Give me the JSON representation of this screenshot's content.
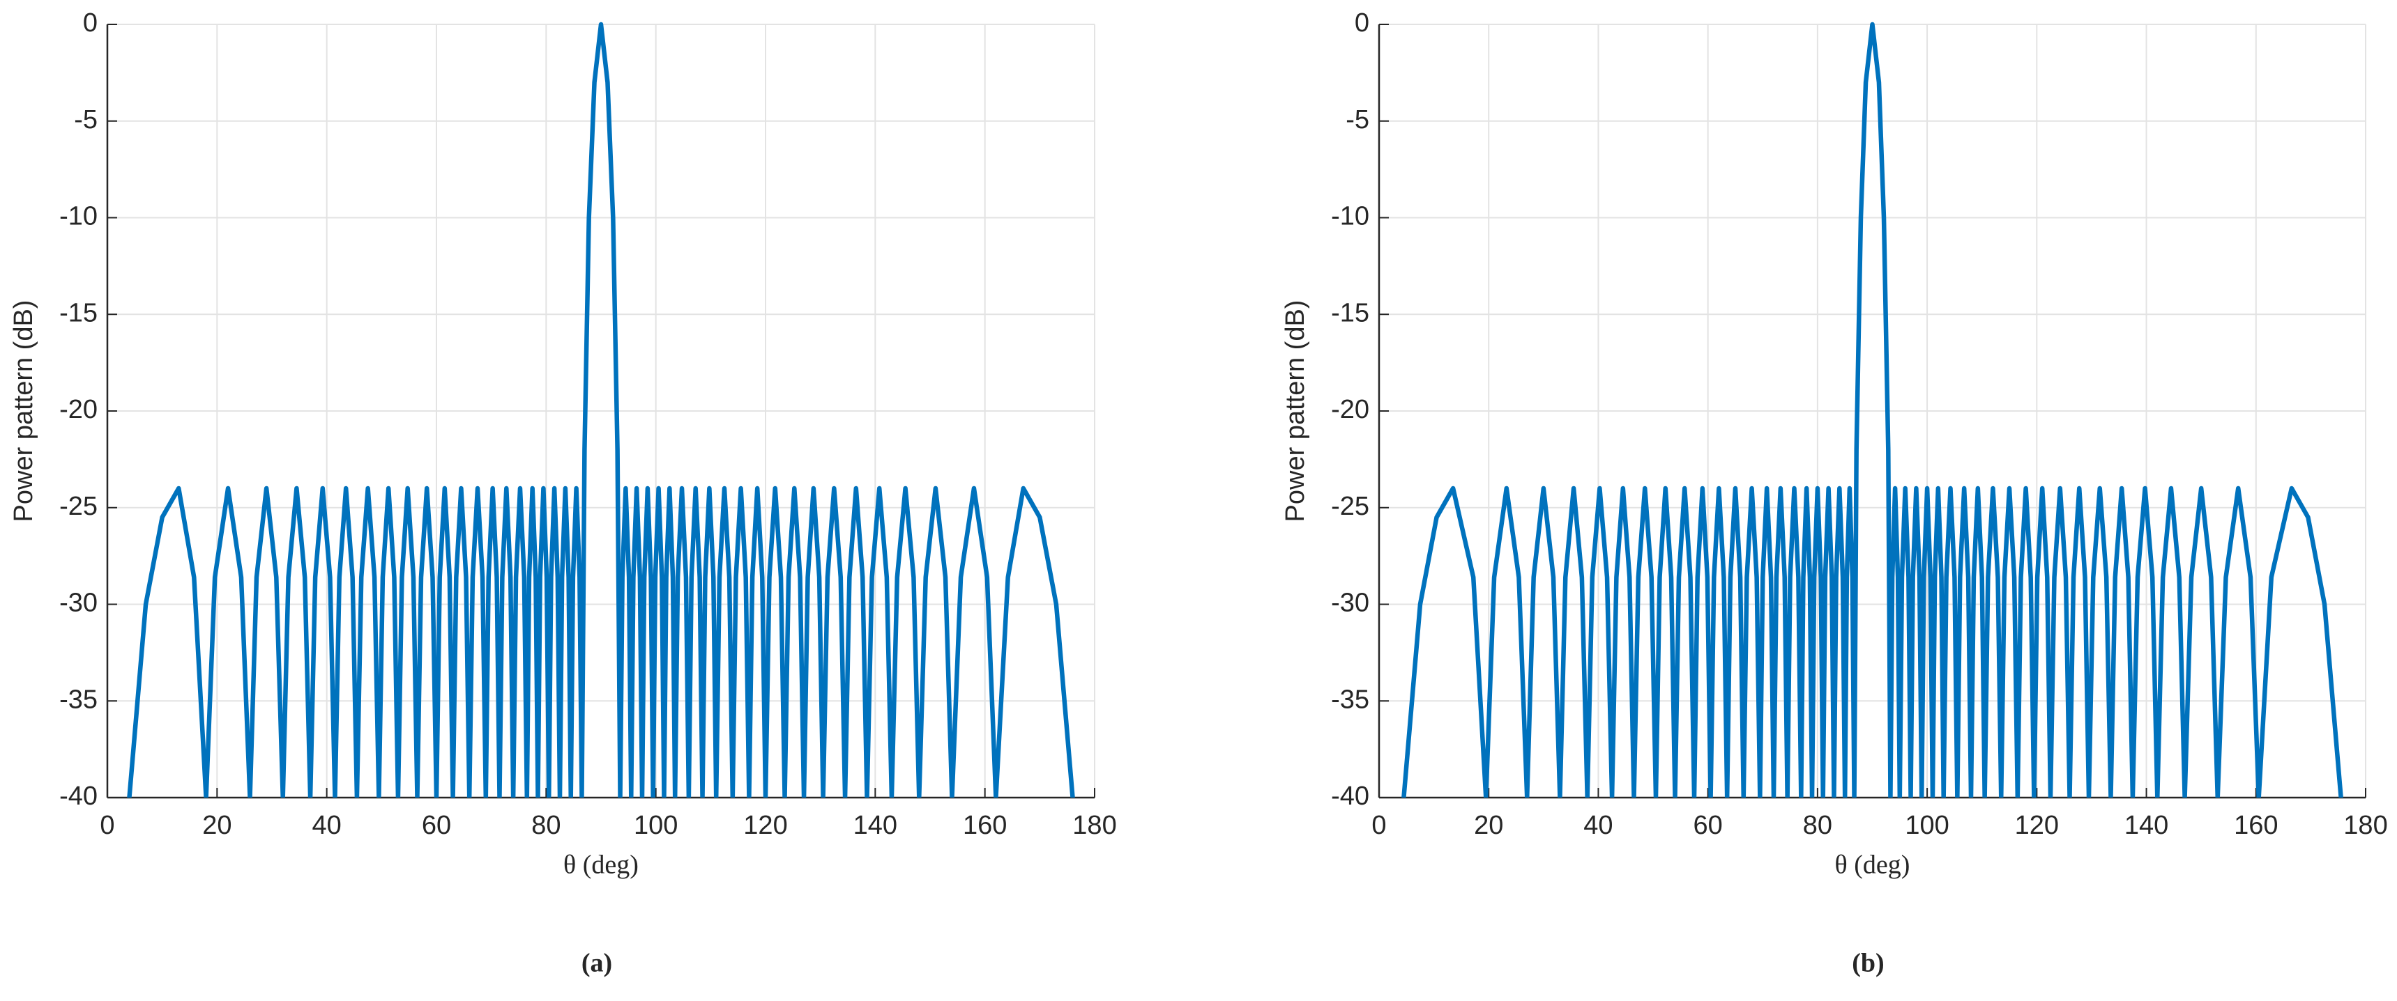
{
  "chart_data": [
    {
      "type": "line",
      "ylabel": "Power pattern (dB)",
      "xlabel": "θ (deg)",
      "caption": "(a)",
      "color": "#0072bd",
      "grid": true,
      "xlim": [
        0,
        180
      ],
      "xticks": [
        0,
        20,
        40,
        60,
        80,
        100,
        120,
        140,
        160,
        180
      ],
      "ylim": [
        -40,
        0
      ],
      "yticks": [
        0,
        -5,
        -10,
        -15,
        -20,
        -25,
        -30,
        -35,
        -40
      ],
      "x": [
        4,
        7,
        10,
        13,
        15.8,
        18,
        19.6,
        22,
        24.4,
        26,
        27.2,
        29,
        30.8,
        32,
        33,
        34.5,
        36,
        37,
        37.9,
        39.25,
        40.6,
        41.5,
        42.3,
        43.5,
        44.7,
        45.5,
        46.3,
        47.5,
        48.7,
        49.5,
        50.2,
        51.25,
        52.3,
        53,
        53.7,
        54.75,
        55.8,
        56.5,
        57.2,
        58.25,
        59.3,
        60,
        60.6,
        61.5,
        62.4,
        63,
        63.6,
        64.5,
        65.4,
        66,
        66.6,
        67.5,
        68.4,
        69,
        69.5,
        70.25,
        71,
        71.5,
        72,
        72.75,
        73.5,
        74,
        74.5,
        75.25,
        76,
        76.5,
        76.9,
        77.5,
        78.1,
        78.5,
        78.9,
        79.5,
        80.1,
        80.5,
        80.9,
        81.5,
        82.1,
        82.5,
        82.9,
        83.5,
        84.1,
        84.5,
        84.9,
        85.5,
        86.1,
        86.5,
        87,
        87.8,
        88.8,
        90,
        91.2,
        92.2,
        93,
        93.5,
        93.9,
        94.5,
        95.1,
        95.5,
        95.9,
        96.5,
        97.1,
        97.5,
        97.9,
        98.5,
        99.1,
        99.5,
        99.9,
        100.5,
        101.1,
        101.5,
        101.9,
        102.5,
        103.1,
        103.5,
        104,
        104.75,
        105.5,
        106,
        106.5,
        107.25,
        108,
        108.5,
        109,
        109.75,
        110.5,
        111,
        111.6,
        112.5,
        113.4,
        114,
        114.6,
        115.5,
        116.4,
        117,
        117.6,
        118.5,
        119.4,
        120,
        120.7,
        121.75,
        122.8,
        123.5,
        124.2,
        125.25,
        126.3,
        127,
        127.7,
        128.75,
        129.8,
        130.5,
        131.3,
        132.5,
        133.7,
        134.5,
        135.3,
        136.5,
        137.7,
        138.5,
        139.4,
        140.75,
        142.1,
        143,
        144,
        145.5,
        147,
        148,
        149.2,
        151,
        152.8,
        154,
        155.6,
        158,
        160.4,
        162,
        164.2,
        167,
        170,
        173,
        176
      ],
      "values": [
        -40,
        -30,
        -25.5,
        -24,
        -28.6,
        -40,
        -28.6,
        -24,
        -28.6,
        -40,
        -28.6,
        -24,
        -28.6,
        -40,
        -28.6,
        -24,
        -28.6,
        -40,
        -28.6,
        -24,
        -28.6,
        -40,
        -28.6,
        -24,
        -28.6,
        -40,
        -28.6,
        -24,
        -28.6,
        -40,
        -28.6,
        -24,
        -28.6,
        -40,
        -28.6,
        -24,
        -28.6,
        -40,
        -28.6,
        -24,
        -28.6,
        -40,
        -28.6,
        -24,
        -28.6,
        -40,
        -28.6,
        -24,
        -28.6,
        -40,
        -28.6,
        -24,
        -28.6,
        -40,
        -28.6,
        -24,
        -28.6,
        -40,
        -28.6,
        -24,
        -28.6,
        -40,
        -28.6,
        -24,
        -28.6,
        -40,
        -28.6,
        -24,
        -28.6,
        -40,
        -28.6,
        -24,
        -28.6,
        -40,
        -28.6,
        -24,
        -28.6,
        -40,
        -28.6,
        -24,
        -28.6,
        -40,
        -28.6,
        -24,
        -28.6,
        -40,
        -22,
        -10,
        -3,
        0,
        -3,
        -10,
        -22,
        -40,
        -28.6,
        -24,
        -28.6,
        -40,
        -28.6,
        -24,
        -28.6,
        -40,
        -28.6,
        -24,
        -28.6,
        -40,
        -28.6,
        -24,
        -28.6,
        -40,
        -28.6,
        -24,
        -28.6,
        -40,
        -28.6,
        -24,
        -28.6,
        -40,
        -28.6,
        -24,
        -28.6,
        -40,
        -28.6,
        -24,
        -28.6,
        -40,
        -28.6,
        -24,
        -28.6,
        -40,
        -28.6,
        -24,
        -28.6,
        -40,
        -28.6,
        -24,
        -28.6,
        -40,
        -28.6,
        -24,
        -28.6,
        -40,
        -28.6,
        -24,
        -28.6,
        -40,
        -28.6,
        -24,
        -28.6,
        -40,
        -28.6,
        -24,
        -28.6,
        -40,
        -28.6,
        -24,
        -28.6,
        -40,
        -28.6,
        -24,
        -28.6,
        -40,
        -28.6,
        -24,
        -28.6,
        -40,
        -28.6,
        -24,
        -28.6,
        -40,
        -28.6,
        -24,
        -28.6,
        -40,
        -28.6,
        -24,
        -25.5,
        -30,
        -40
      ]
    },
    {
      "type": "line",
      "ylabel": "Power pattern (dB)",
      "xlabel": "θ (deg)",
      "caption": "(b)",
      "color": "#0072bd",
      "grid": true,
      "xlim": [
        0,
        180
      ],
      "xticks": [
        0,
        20,
        40,
        60,
        80,
        100,
        120,
        140,
        160,
        180
      ],
      "ylim": [
        -40,
        0
      ],
      "yticks": [
        0,
        -5,
        -10,
        -15,
        -20,
        -25,
        -30,
        -35,
        -40
      ],
      "x": [
        4.5,
        7.5,
        10.5,
        13.5,
        17.2,
        19.5,
        21,
        23.25,
        25.5,
        27,
        28.2,
        30,
        31.8,
        33,
        34,
        35.5,
        37,
        38,
        38.9,
        40.25,
        41.6,
        42.5,
        43.3,
        44.5,
        45.7,
        46.5,
        47.3,
        48.5,
        49.7,
        50.5,
        51.2,
        52.25,
        53.3,
        54,
        54.7,
        55.75,
        56.8,
        57.5,
        58.1,
        59,
        59.9,
        60.5,
        61.1,
        62,
        62.9,
        63.5,
        64.1,
        65,
        65.9,
        66.5,
        67.1,
        68,
        68.9,
        69.5,
        70,
        70.75,
        71.5,
        72,
        72.5,
        73.25,
        74,
        74.5,
        75,
        75.75,
        76.5,
        77,
        77.4,
        78,
        78.6,
        79,
        79.4,
        80,
        80.6,
        81,
        81.4,
        82,
        82.6,
        83,
        83.4,
        84,
        84.6,
        85,
        85.34,
        85.85,
        86.36,
        86.7,
        87.1,
        87.9,
        88.8,
        90,
        91.2,
        92.1,
        92.9,
        93.3,
        93.64,
        94.15,
        94.66,
        95,
        95.4,
        96,
        96.6,
        97,
        97.4,
        98,
        98.6,
        99,
        99.4,
        100,
        100.6,
        101,
        101.4,
        102,
        102.6,
        103,
        103.5,
        104.25,
        105,
        105.5,
        106,
        106.75,
        107.5,
        108,
        108.5,
        109.25,
        110,
        110.5,
        111.1,
        112,
        112.9,
        113.5,
        114.1,
        115,
        115.9,
        116.5,
        117.1,
        118,
        118.9,
        119.5,
        120.1,
        121,
        121.9,
        122.5,
        123.2,
        124.25,
        125.3,
        126,
        126.7,
        127.75,
        128.8,
        129.5,
        130.3,
        131.5,
        132.7,
        133.5,
        134.3,
        135.5,
        136.7,
        137.5,
        138.4,
        139.75,
        141.1,
        142,
        143,
        144.5,
        146,
        147,
        148.2,
        150,
        151.8,
        153,
        154.5,
        156.75,
        159,
        160.5,
        162.8,
        166.5,
        169.5,
        172.5,
        175.5
      ],
      "values": [
        -40,
        -30,
        -25.5,
        -24,
        -28.6,
        -40,
        -28.6,
        -24,
        -28.6,
        -40,
        -28.6,
        -24,
        -28.6,
        -40,
        -28.6,
        -24,
        -28.6,
        -40,
        -28.6,
        -24,
        -28.6,
        -40,
        -28.6,
        -24,
        -28.6,
        -40,
        -28.6,
        -24,
        -28.6,
        -40,
        -28.6,
        -24,
        -28.6,
        -40,
        -28.6,
        -24,
        -28.6,
        -40,
        -28.6,
        -24,
        -28.6,
        -40,
        -28.6,
        -24,
        -28.6,
        -40,
        -28.6,
        -24,
        -28.6,
        -40,
        -28.6,
        -24,
        -28.6,
        -40,
        -28.6,
        -24,
        -28.6,
        -40,
        -28.6,
        -24,
        -28.6,
        -40,
        -28.6,
        -24,
        -28.6,
        -40,
        -28.6,
        -24,
        -28.6,
        -40,
        -28.6,
        -24,
        -28.6,
        -40,
        -28.6,
        -24,
        -28.6,
        -40,
        -28.6,
        -24,
        -28.6,
        -40,
        -28.6,
        -24,
        -28.6,
        -40,
        -22,
        -10,
        -3,
        0,
        -3,
        -10,
        -22,
        -40,
        -28.6,
        -24,
        -28.6,
        -40,
        -28.6,
        -24,
        -28.6,
        -40,
        -28.6,
        -24,
        -28.6,
        -40,
        -28.6,
        -24,
        -28.6,
        -40,
        -28.6,
        -24,
        -28.6,
        -40,
        -28.6,
        -24,
        -28.6,
        -40,
        -28.6,
        -24,
        -28.6,
        -40,
        -28.6,
        -24,
        -28.6,
        -40,
        -28.6,
        -24,
        -28.6,
        -40,
        -28.6,
        -24,
        -28.6,
        -40,
        -28.6,
        -24,
        -28.6,
        -40,
        -28.6,
        -24,
        -28.6,
        -40,
        -28.6,
        -24,
        -28.6,
        -40,
        -28.6,
        -24,
        -28.6,
        -40,
        -28.6,
        -24,
        -28.6,
        -40,
        -28.6,
        -24,
        -28.6,
        -40,
        -28.6,
        -24,
        -28.6,
        -40,
        -28.6,
        -24,
        -28.6,
        -40,
        -28.6,
        -24,
        -28.6,
        -40,
        -28.6,
        -24,
        -28.6,
        -40,
        -28.6,
        -24,
        -25.5,
        -30,
        -40
      ]
    }
  ]
}
